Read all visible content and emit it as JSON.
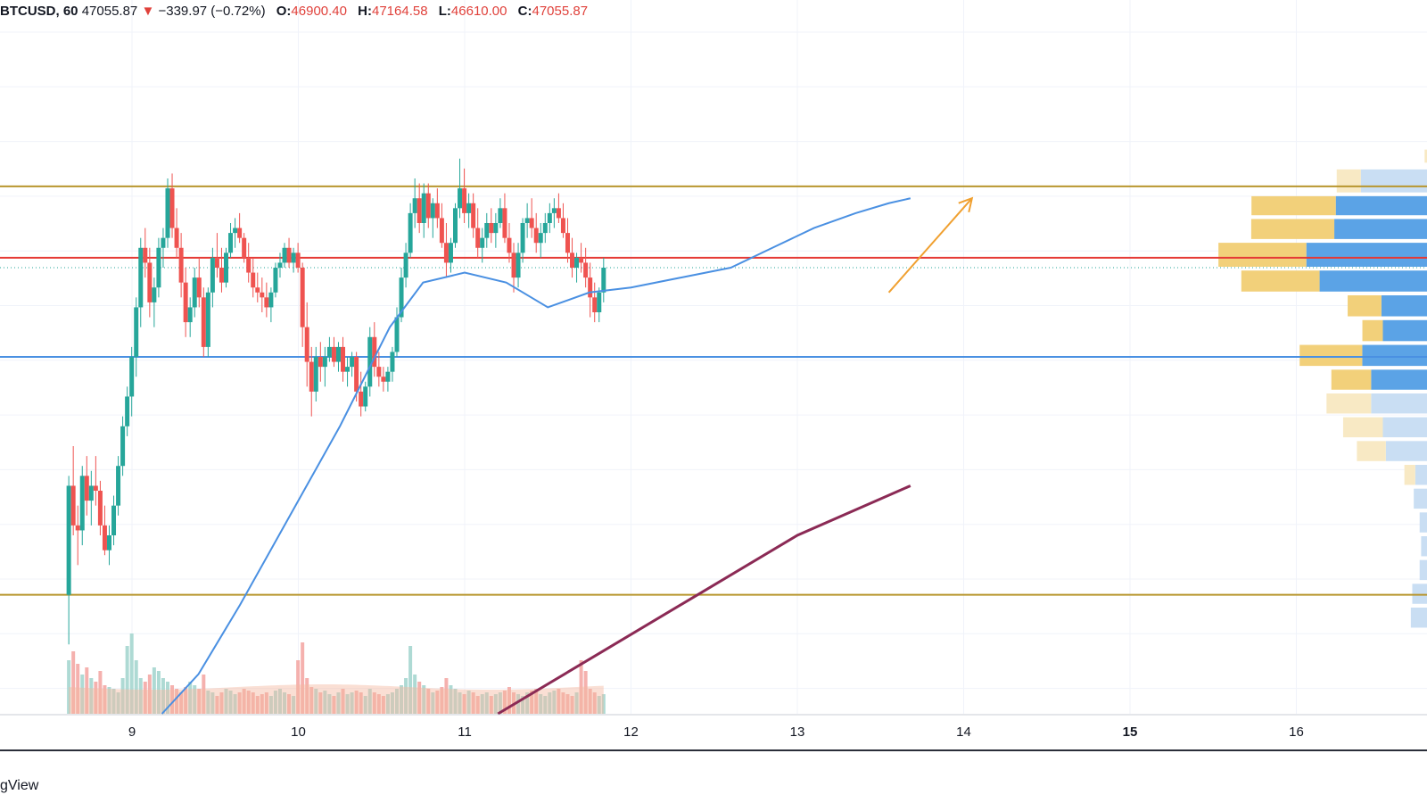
{
  "legend": {
    "symbol": "BTCUSD, 60",
    "last": "47055.87",
    "arrow": "▼",
    "change": "−339.97 (−0.72%)",
    "o_label": "O:",
    "o": "46900.40",
    "h_label": "H:",
    "h": "47164.58",
    "l_label": "L:",
    "l": "46610.00",
    "c_label": "C:",
    "c": "47055.87"
  },
  "brand": "gView",
  "colors": {
    "up": "#26a69a",
    "down": "#ef5350",
    "ma_blue": "#4a90e2",
    "ma_purple": "#8b2a55",
    "level_gold": "#b8962e",
    "level_red": "#e53935",
    "level_blue": "#4a90e2",
    "arrow": "#f0a030",
    "vp_up": "#f2d07a",
    "vp_down": "#5ba3e6",
    "vol_ma": "#f5b8a0"
  },
  "chart_data": {
    "type": "candlestick",
    "x_ticks": [
      {
        "label": "9",
        "day": 9,
        "bold": false
      },
      {
        "label": "10",
        "day": 10,
        "bold": false
      },
      {
        "label": "11",
        "day": 11,
        "bold": false
      },
      {
        "label": "12",
        "day": 12,
        "bold": false
      },
      {
        "label": "13",
        "day": 13,
        "bold": false
      },
      {
        "label": "14",
        "day": 14,
        "bold": false
      },
      {
        "label": "15",
        "day": 15,
        "bold": true
      },
      {
        "label": "16",
        "day": 16,
        "bold": false
      }
    ],
    "xlim": [
      8.2,
      16.6
    ],
    "ylim": [
      42000,
      49200
    ],
    "candle_start_day": 8.62,
    "candle_step": 0.02702,
    "ohlc": [
      [
        43200,
        44400,
        42700,
        44300
      ],
      [
        44300,
        44700,
        43800,
        43900
      ],
      [
        43900,
        44100,
        43500,
        43850
      ],
      [
        43850,
        44500,
        43700,
        44400
      ],
      [
        44400,
        44600,
        44000,
        44150
      ],
      [
        44150,
        44450,
        43900,
        44300
      ],
      [
        44300,
        44600,
        44100,
        44250
      ],
      [
        44250,
        44350,
        43800,
        43900
      ],
      [
        43900,
        44100,
        43600,
        43650
      ],
      [
        43650,
        43900,
        43500,
        43800
      ],
      [
        43800,
        44200,
        43700,
        44100
      ],
      [
        44100,
        44600,
        44000,
        44500
      ],
      [
        44500,
        45000,
        44400,
        44900
      ],
      [
        44900,
        45300,
        44800,
        45200
      ],
      [
        45200,
        45700,
        45000,
        45600
      ],
      [
        45600,
        46200,
        45400,
        46100
      ],
      [
        46100,
        46800,
        45900,
        46700
      ],
      [
        46700,
        46900,
        46400,
        46550
      ],
      [
        46550,
        46700,
        46000,
        46150
      ],
      [
        46150,
        46400,
        45900,
        46300
      ],
      [
        46300,
        46800,
        46200,
        46700
      ],
      [
        46700,
        46900,
        46500,
        46800
      ],
      [
        46800,
        47400,
        46700,
        47300
      ],
      [
        47300,
        47450,
        46800,
        46900
      ],
      [
        46900,
        47100,
        46600,
        46700
      ],
      [
        46700,
        46850,
        46200,
        46350
      ],
      [
        46350,
        46500,
        45800,
        45950
      ],
      [
        45950,
        46200,
        45800,
        46100
      ],
      [
        46100,
        46500,
        46000,
        46400
      ],
      [
        46400,
        46600,
        46100,
        46200
      ],
      [
        46200,
        46300,
        45600,
        45700
      ],
      [
        45700,
        46300,
        45600,
        46250
      ],
      [
        46250,
        46700,
        46100,
        46600
      ],
      [
        46600,
        46850,
        46400,
        46500
      ],
      [
        46500,
        46700,
        46250,
        46350
      ],
      [
        46350,
        46700,
        46300,
        46650
      ],
      [
        46650,
        46950,
        46600,
        46850
      ],
      [
        46850,
        47000,
        46700,
        46900
      ],
      [
        46900,
        47050,
        46750,
        46800
      ],
      [
        46800,
        46850,
        46550,
        46600
      ],
      [
        46600,
        46750,
        46350,
        46450
      ],
      [
        46450,
        46600,
        46200,
        46300
      ],
      [
        46300,
        46450,
        46150,
        46250
      ],
      [
        46250,
        46400,
        46050,
        46200
      ],
      [
        46200,
        46350,
        46000,
        46100
      ],
      [
        46100,
        46300,
        45950,
        46250
      ],
      [
        46250,
        46550,
        46200,
        46500
      ],
      [
        46500,
        46650,
        46400,
        46550
      ],
      [
        46550,
        46750,
        46500,
        46700
      ],
      [
        46700,
        46800,
        46500,
        46550
      ],
      [
        46550,
        46700,
        46450,
        46650
      ],
      [
        46650,
        46750,
        46450,
        46500
      ],
      [
        46500,
        46550,
        45700,
        45900
      ],
      [
        45900,
        46150,
        45300,
        45550
      ],
      [
        45550,
        45700,
        45000,
        45250
      ],
      [
        45250,
        45700,
        45150,
        45600
      ],
      [
        45600,
        45750,
        45350,
        45500
      ],
      [
        45500,
        45700,
        45300,
        45600
      ],
      [
        45600,
        45800,
        45550,
        45700
      ],
      [
        45700,
        45800,
        45500,
        45550
      ],
      [
        45550,
        45750,
        45450,
        45700
      ],
      [
        45700,
        45800,
        45350,
        45450
      ],
      [
        45450,
        45600,
        45300,
        45500
      ],
      [
        45500,
        45650,
        45400,
        45600
      ],
      [
        45600,
        45650,
        45150,
        45250
      ],
      [
        45250,
        45450,
        45000,
        45100
      ],
      [
        45100,
        45350,
        45050,
        45300
      ],
      [
        45300,
        45900,
        45200,
        45800
      ],
      [
        45800,
        45950,
        45400,
        45500
      ],
      [
        45500,
        45650,
        45300,
        45400
      ],
      [
        45400,
        45500,
        45250,
        45350
      ],
      [
        45350,
        45500,
        45250,
        45450
      ],
      [
        45450,
        45700,
        45350,
        45650
      ],
      [
        45650,
        46100,
        45600,
        46000
      ],
      [
        46000,
        46500,
        45950,
        46400
      ],
      [
        46400,
        46750,
        46300,
        46650
      ],
      [
        46650,
        47150,
        46600,
        47050
      ],
      [
        47050,
        47400,
        46900,
        47200
      ],
      [
        47200,
        47350,
        46850,
        46950
      ],
      [
        46950,
        47350,
        46800,
        47250
      ],
      [
        47250,
        47350,
        46900,
        47000
      ],
      [
        47000,
        47200,
        46800,
        47150
      ],
      [
        47150,
        47300,
        46900,
        47000
      ],
      [
        47000,
        47150,
        46700,
        46750
      ],
      [
        46750,
        46950,
        46400,
        46550
      ],
      [
        46550,
        46800,
        46450,
        46750
      ],
      [
        46750,
        47150,
        46700,
        47100
      ],
      [
        47100,
        47600,
        47000,
        47300
      ],
      [
        47300,
        47500,
        46950,
        47050
      ],
      [
        47050,
        47250,
        46900,
        47150
      ],
      [
        47150,
        47250,
        46800,
        46900
      ],
      [
        46900,
        47100,
        46600,
        46700
      ],
      [
        46700,
        46900,
        46550,
        46800
      ],
      [
        46800,
        47050,
        46700,
        46950
      ],
      [
        46950,
        47100,
        46750,
        46850
      ],
      [
        46850,
        47050,
        46700,
        46950
      ],
      [
        46950,
        47200,
        46900,
        47100
      ],
      [
        47100,
        47250,
        46750,
        46800
      ],
      [
        46800,
        46950,
        46550,
        46650
      ],
      [
        46650,
        46750,
        46250,
        46400
      ],
      [
        46400,
        46750,
        46300,
        46650
      ],
      [
        46650,
        47000,
        46550,
        46950
      ],
      [
        46950,
        47150,
        46800,
        47000
      ],
      [
        47000,
        47200,
        46800,
        46900
      ],
      [
        46900,
        47050,
        46650,
        46750
      ],
      [
        46750,
        46950,
        46600,
        46850
      ],
      [
        46850,
        47050,
        46750,
        46950
      ],
      [
        46950,
        47150,
        46850,
        47050
      ],
      [
        47050,
        47200,
        46900,
        47100
      ],
      [
        47100,
        47250,
        46950,
        47000
      ],
      [
        47000,
        47150,
        46800,
        46850
      ],
      [
        46850,
        47000,
        46550,
        46650
      ],
      [
        46650,
        46800,
        46400,
        46500
      ],
      [
        46500,
        46650,
        46350,
        46600
      ],
      [
        46600,
        46750,
        46450,
        46550
      ],
      [
        46550,
        46700,
        46300,
        46400
      ],
      [
        46400,
        46550,
        46000,
        46200
      ],
      [
        46200,
        46350,
        45950,
        46050
      ],
      [
        46050,
        46300,
        45950,
        46250
      ],
      [
        46250,
        46600,
        46150,
        46500
      ]
    ],
    "levels": [
      {
        "name": "resistance-level",
        "price": 47320,
        "color": "#b8962e"
      },
      {
        "name": "red-level",
        "price": 46600,
        "color": "#e53935"
      },
      {
        "name": "blue-support-level",
        "price": 45600,
        "color": "#4a90e2"
      },
      {
        "name": "gold-support-level",
        "price": 43200,
        "color": "#b8962e"
      }
    ],
    "ma_blue": [
      [
        9.18,
        42000
      ],
      [
        9.4,
        42400
      ],
      [
        9.65,
        43100
      ],
      [
        9.95,
        44000
      ],
      [
        10.25,
        44900
      ],
      [
        10.55,
        45900
      ],
      [
        10.75,
        46350
      ],
      [
        11.0,
        46450
      ],
      [
        11.25,
        46350
      ],
      [
        11.5,
        46100
      ],
      [
        11.75,
        46250
      ],
      [
        12.0,
        46300
      ],
      [
        12.3,
        46400
      ],
      [
        12.6,
        46500
      ],
      [
        12.85,
        46700
      ],
      [
        13.1,
        46900
      ],
      [
        13.35,
        47050
      ],
      [
        13.55,
        47150
      ],
      [
        13.68,
        47200
      ]
    ],
    "ma_purple": [
      [
        11.2,
        42000
      ],
      [
        11.8,
        42600
      ],
      [
        12.4,
        43200
      ],
      [
        13.0,
        43800
      ],
      [
        13.68,
        44300
      ]
    ],
    "arrow": {
      "from": [
        13.55,
        46250
      ],
      "to": [
        14.05,
        47200
      ]
    },
    "volume": [
      0.3,
      0.35,
      0.28,
      0.22,
      0.26,
      0.2,
      0.18,
      0.24,
      0.16,
      0.15,
      0.14,
      0.12,
      0.2,
      0.38,
      0.45,
      0.3,
      0.2,
      0.18,
      0.22,
      0.26,
      0.24,
      0.2,
      0.18,
      0.16,
      0.14,
      0.12,
      0.15,
      0.18,
      0.16,
      0.14,
      0.22,
      0.13,
      0.12,
      0.1,
      0.12,
      0.14,
      0.13,
      0.11,
      0.12,
      0.14,
      0.13,
      0.12,
      0.1,
      0.11,
      0.12,
      0.1,
      0.13,
      0.14,
      0.12,
      0.11,
      0.1,
      0.3,
      0.4,
      0.2,
      0.15,
      0.14,
      0.12,
      0.13,
      0.11,
      0.1,
      0.12,
      0.14,
      0.11,
      0.12,
      0.13,
      0.12,
      0.1,
      0.14,
      0.12,
      0.11,
      0.1,
      0.11,
      0.12,
      0.14,
      0.16,
      0.2,
      0.38,
      0.22,
      0.18,
      0.16,
      0.14,
      0.12,
      0.13,
      0.15,
      0.2,
      0.16,
      0.14,
      0.12,
      0.11,
      0.13,
      0.12,
      0.1,
      0.11,
      0.12,
      0.1,
      0.11,
      0.12,
      0.13,
      0.15,
      0.12,
      0.11,
      0.1,
      0.12,
      0.13,
      0.14,
      0.11,
      0.1,
      0.12,
      0.13,
      0.14,
      0.12,
      0.11,
      0.1,
      0.12,
      0.3,
      0.24,
      0.14,
      0.12,
      0.1,
      0.11
    ],
    "volume_profile": [
      {
        "low": 47550,
        "high": 47700,
        "up": 0.02,
        "down": 0.0,
        "light": true
      },
      {
        "low": 47250,
        "high": 47500,
        "up": 0.2,
        "down": 0.45,
        "light": true
      },
      {
        "low": 47020,
        "high": 47230,
        "up": 0.7,
        "down": 0.62,
        "light": false
      },
      {
        "low": 46780,
        "high": 47000,
        "up": 0.69,
        "down": 0.63,
        "light": false
      },
      {
        "low": 46500,
        "high": 46760,
        "up": 0.73,
        "down": 0.82,
        "light": false
      },
      {
        "low": 46250,
        "high": 46480,
        "up": 0.65,
        "down": 0.73,
        "light": false
      },
      {
        "low": 46000,
        "high": 46230,
        "up": 0.28,
        "down": 0.31,
        "light": false
      },
      {
        "low": 45750,
        "high": 45980,
        "up": 0.17,
        "down": 0.3,
        "light": false
      },
      {
        "low": 45500,
        "high": 45730,
        "up": 0.52,
        "down": 0.44,
        "light": false
      },
      {
        "low": 45260,
        "high": 45480,
        "up": 0.33,
        "down": 0.38,
        "light": false
      },
      {
        "low": 45020,
        "high": 45240,
        "up": 0.37,
        "down": 0.38,
        "light": true
      },
      {
        "low": 44780,
        "high": 45000,
        "up": 0.33,
        "down": 0.3,
        "light": true
      },
      {
        "low": 44540,
        "high": 44760,
        "up": 0.24,
        "down": 0.28,
        "light": true
      },
      {
        "low": 44300,
        "high": 44520,
        "up": 0.09,
        "down": 0.08,
        "light": true
      },
      {
        "low": 44060,
        "high": 44280,
        "up": 0.0,
        "down": 0.09,
        "light": true
      },
      {
        "low": 43820,
        "high": 44040,
        "up": 0.0,
        "down": 0.05,
        "light": true
      },
      {
        "low": 43580,
        "high": 43800,
        "up": 0.0,
        "down": 0.04,
        "light": true
      },
      {
        "low": 43340,
        "high": 43560,
        "up": 0.0,
        "down": 0.05,
        "light": true
      },
      {
        "low": 43100,
        "high": 43320,
        "up": 0.0,
        "down": 0.1,
        "light": true
      },
      {
        "low": 42860,
        "high": 43080,
        "up": 0.0,
        "down": 0.11,
        "light": true
      }
    ]
  }
}
